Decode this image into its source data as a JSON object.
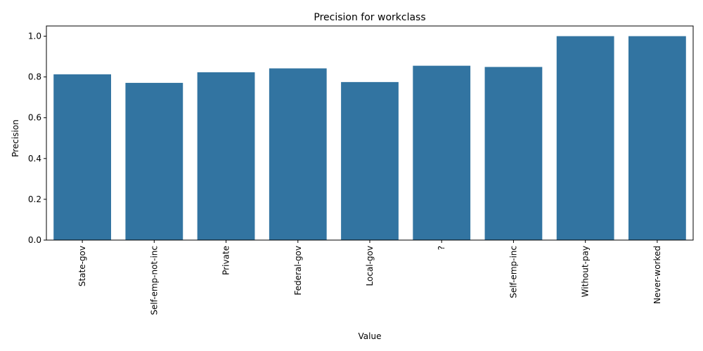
{
  "chart_data": {
    "type": "bar",
    "title": "Precision for workclass",
    "xlabel": "Value",
    "ylabel": "Precision",
    "categories": [
      "State-gov",
      "Self-emp-not-inc",
      "Private",
      "Federal-gov",
      "Local-gov",
      "?",
      "Self-emp-inc",
      "Without-pay",
      "Never-worked"
    ],
    "values": [
      0.813,
      0.771,
      0.823,
      0.842,
      0.775,
      0.855,
      0.849,
      1.0,
      1.0
    ],
    "ylim": [
      0,
      1.05
    ],
    "yticks": [
      0.0,
      0.2,
      0.4,
      0.6,
      0.8,
      1.0
    ],
    "ytick_labels": [
      "0.0",
      "0.2",
      "0.4",
      "0.6",
      "0.8",
      "1.0"
    ],
    "grid": false,
    "bar_color": "#3274a1"
  }
}
